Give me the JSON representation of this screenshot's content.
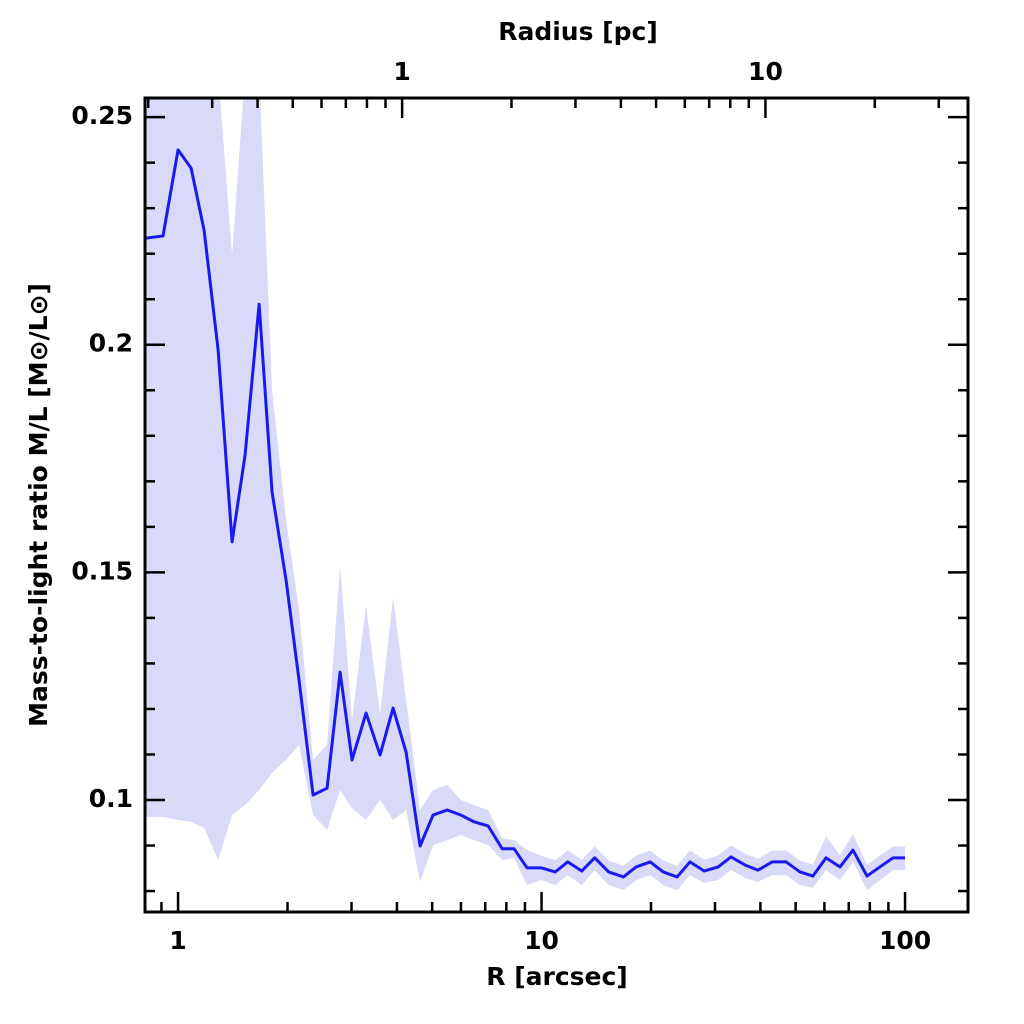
{
  "chart_data": {
    "type": "line",
    "xlabel": "R [arcsec]",
    "ylabel": "Mass-to-light ratio M/L [M⊙/L⊙]",
    "x2label": "Radius [pc]",
    "xscale": "log",
    "xlim": [
      0.811,
      149
    ],
    "xticks": [
      1,
      10,
      100
    ],
    "xminorticks": [
      0.9,
      2,
      3,
      4,
      5,
      6,
      7,
      8,
      9,
      20,
      30,
      40,
      50,
      60,
      70,
      80,
      90
    ],
    "x2lim": [
      0.196,
      36.1
    ],
    "x2ticks": [
      1,
      10
    ],
    "x2minorticks": [
      0.2,
      0.3,
      0.4,
      0.5,
      0.6,
      0.7,
      0.8,
      0.9,
      2,
      3,
      4,
      5,
      6,
      7,
      8,
      9,
      20,
      30
    ],
    "ylim": [
      0.0754,
      0.2542
    ],
    "yticks": [
      0.1,
      0.15,
      0.2,
      0.25
    ],
    "yminorticks": [
      0.08,
      0.09,
      0.11,
      0.12,
      0.13,
      0.14,
      0.16,
      0.17,
      0.18,
      0.19,
      0.21,
      0.22,
      0.23,
      0.24
    ],
    "x": [
      0.811,
      0.909,
      1.0,
      1.086,
      1.179,
      1.289,
      1.408,
      1.529,
      1.671,
      1.814,
      1.982,
      2.152,
      2.352,
      2.57,
      2.791,
      3.01,
      3.29,
      3.595,
      3.904,
      4.24,
      4.632,
      5.029,
      5.5,
      6.0,
      6.52,
      7.13,
      7.79,
      8.4,
      9.12,
      9.97,
      10.9,
      11.8,
      12.9,
      14.0,
      15.3,
      16.8,
      18.2,
      19.9,
      21.6,
      23.6,
      25.6,
      28.0,
      30.6,
      33.2,
      36.3,
      39.4,
      43.1,
      47.1,
      51.4,
      55.8,
      60.6,
      66.2,
      71.9,
      78.6,
      85.3,
      92.7,
      100
    ],
    "series": [
      {
        "color": "#1a1aee",
        "values": [
          0.2234,
          0.2239,
          0.2428,
          0.2388,
          0.2252,
          0.1988,
          0.1567,
          0.1758,
          0.2089,
          0.1676,
          0.1483,
          0.1263,
          0.1011,
          0.1026,
          0.1281,
          0.1088,
          0.1191,
          0.1099,
          0.1202,
          0.1105,
          0.0899,
          0.0967,
          0.0978,
          0.0967,
          0.0952,
          0.0943,
          0.0893,
          0.0893,
          0.0851,
          0.0851,
          0.0842,
          0.0864,
          0.0844,
          0.0873,
          0.0842,
          0.0831,
          0.0853,
          0.0864,
          0.0842,
          0.0831,
          0.0864,
          0.0844,
          0.0853,
          0.0875,
          0.0857,
          0.0846,
          0.0864,
          0.0864,
          0.0842,
          0.0833,
          0.0873,
          0.0853,
          0.089,
          0.0833,
          0.0853,
          0.0873,
          0.0873
        ]
      }
    ],
    "band": {
      "color": "#d8daf8",
      "lower": [
        0.0963,
        0.0963,
        0.0956,
        0.0952,
        0.0939,
        0.0868,
        0.0967,
        0.0989,
        0.1022,
        0.106,
        0.1088,
        0.1121,
        0.0967,
        0.0934,
        0.1022,
        0.0982,
        0.0956,
        0.1,
        0.0956,
        0.0978,
        0.082,
        0.0901,
        0.0912,
        0.0923,
        0.0912,
        0.0901,
        0.0868,
        0.0873,
        0.0813,
        0.0824,
        0.0813,
        0.0835,
        0.0813,
        0.0846,
        0.0813,
        0.0802,
        0.0824,
        0.0835,
        0.0813,
        0.0802,
        0.0835,
        0.0818,
        0.0824,
        0.0846,
        0.0829,
        0.082,
        0.0835,
        0.0835,
        0.0813,
        0.0807,
        0.0846,
        0.0824,
        0.0864,
        0.0802,
        0.0824,
        0.0846,
        0.0846
      ],
      "upper": [
        0.26,
        0.26,
        0.26,
        0.26,
        0.26,
        0.26,
        0.2197,
        0.26,
        0.26,
        0.19,
        0.1615,
        0.1417,
        0.1088,
        0.1121,
        0.1516,
        0.1176,
        0.1428,
        0.1187,
        0.1446,
        0.122,
        0.0978,
        0.1022,
        0.1033,
        0.1,
        0.0989,
        0.0978,
        0.0916,
        0.0912,
        0.089,
        0.0878,
        0.0868,
        0.0889,
        0.0869,
        0.0898,
        0.0867,
        0.0856,
        0.0878,
        0.0889,
        0.0867,
        0.0856,
        0.0889,
        0.0869,
        0.0878,
        0.09,
        0.0882,
        0.0871,
        0.0889,
        0.0889,
        0.0867,
        0.0858,
        0.092,
        0.0878,
        0.0925,
        0.0858,
        0.0878,
        0.0898,
        0.0898
      ]
    }
  }
}
